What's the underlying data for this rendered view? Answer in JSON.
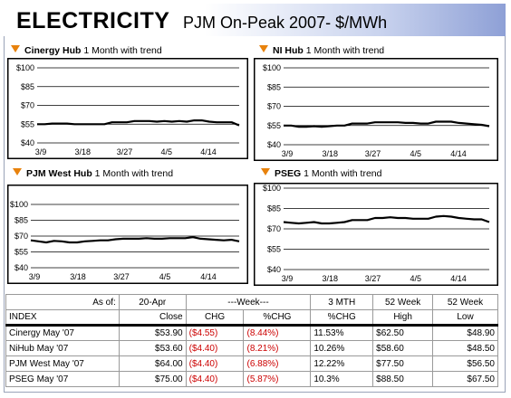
{
  "header": {
    "title": "ELECTRICITY",
    "subtitle": "PJM On-Peak 2007- $/MWh"
  },
  "chart_data": [
    {
      "type": "line",
      "hub": "Cinergy Hub",
      "caption": "1 Month with trend",
      "ylim": [
        40,
        100
      ],
      "yticks": [
        40,
        55,
        70,
        85,
        100
      ],
      "ytick_labels": [
        "$40",
        "$55",
        "$70",
        "$85",
        "$100"
      ],
      "xtick_labels": [
        "3/9",
        "3/18",
        "3/27",
        "4/5",
        "4/14"
      ],
      "values": [
        55,
        55,
        55.5,
        55.5,
        55.5,
        55,
        55,
        55,
        55,
        55,
        56.5,
        56.5,
        56.5,
        57.5,
        57.5,
        57.5,
        57,
        57.5,
        57,
        57.5,
        57,
        58,
        58,
        57,
        56.5,
        56.5,
        56.5,
        54
      ]
    },
    {
      "type": "line",
      "hub": "NI Hub",
      "caption": "1 Month with trend",
      "ylim": [
        40,
        100
      ],
      "yticks": [
        40,
        55,
        70,
        85,
        100
      ],
      "ytick_labels": [
        "$40",
        "$55",
        "$70",
        "$85",
        "$100"
      ],
      "xtick_labels": [
        "3/9",
        "3/18",
        "3/27",
        "4/5",
        "4/14"
      ],
      "values": [
        55,
        55,
        54,
        54,
        54.5,
        54,
        54.5,
        55,
        55,
        56.5,
        56.5,
        56.5,
        57.5,
        57.5,
        57.5,
        57.5,
        57,
        57,
        56.5,
        56.5,
        58,
        58,
        58,
        57,
        56.5,
        56,
        55.5,
        54.5
      ]
    },
    {
      "type": "line",
      "hub": "PJM West Hub",
      "caption": "1 Month with trend",
      "ylim": [
        40,
        100
      ],
      "yticks": [
        40,
        55,
        70,
        85,
        100
      ],
      "ytick_labels": [
        "$40",
        "$55",
        "$70",
        "$85",
        "$100"
      ],
      "xtick_labels": [
        "3/9",
        "3/18",
        "3/27",
        "4/5",
        "4/14"
      ],
      "values": [
        66,
        65,
        64,
        65.5,
        65,
        64,
        64,
        65,
        65.5,
        66,
        66,
        67,
        67.5,
        67.5,
        67.5,
        68,
        67.5,
        67.5,
        68,
        68,
        68,
        69,
        67.5,
        67,
        66.5,
        66,
        66.5,
        65
      ]
    },
    {
      "type": "line",
      "hub": "PSEG",
      "caption": "1 Month with trend",
      "ylim": [
        40,
        100
      ],
      "yticks": [
        40,
        55,
        70,
        85,
        100
      ],
      "ytick_labels": [
        "$40",
        "$55",
        "$70",
        "$85",
        "$100"
      ],
      "xtick_labels": [
        "3/9",
        "3/18",
        "3/27",
        "4/5",
        "4/14"
      ],
      "values": [
        75,
        74.5,
        74,
        74.5,
        75,
        74,
        74,
        74.5,
        75,
        76.5,
        76.5,
        76.5,
        78,
        78,
        78.5,
        78,
        78,
        77.5,
        77.5,
        77.5,
        79,
        79.5,
        79,
        78,
        77.5,
        77,
        77,
        75
      ]
    }
  ],
  "table": {
    "header_row1": [
      "As of:",
      "20-Apr",
      "---Week---",
      "3 MTH",
      "52 Week",
      "52 Week"
    ],
    "header_row2": [
      "INDEX",
      "Close",
      "CHG",
      "%CHG",
      "%CHG",
      "High",
      "Low"
    ],
    "rows": [
      [
        "Cinergy May '07",
        "$53.90",
        "($4.55)",
        "(8.44%)",
        "11.53%",
        "$62.50",
        "$48.90"
      ],
      [
        "NiHub May '07",
        "$53.60",
        "($4.40)",
        "(8.21%)",
        "10.26%",
        "$58.60",
        "$48.50"
      ],
      [
        "PJM West May '07",
        "$64.00",
        "($4.40)",
        "(6.88%)",
        "12.22%",
        "$77.50",
        "$56.50"
      ],
      [
        "PSEG May '07",
        "$75.00",
        "($4.40)",
        "(5.87%)",
        "10.3%",
        "$88.50",
        "$67.50"
      ]
    ]
  }
}
